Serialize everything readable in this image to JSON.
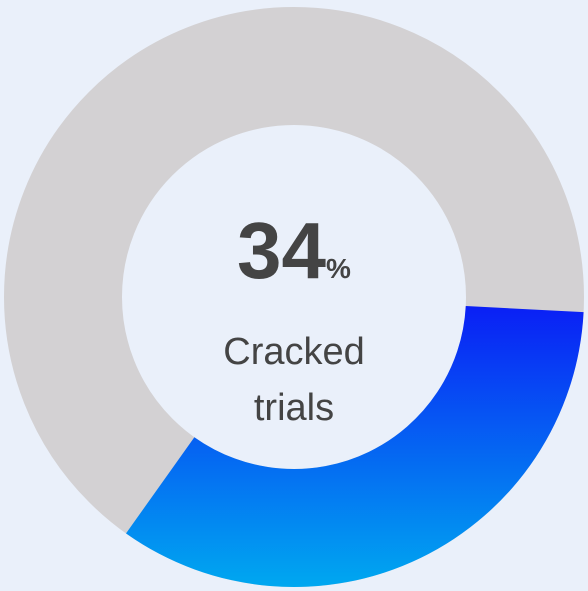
{
  "chart_data": {
    "type": "donut",
    "value": 34,
    "unit": "%",
    "label": [
      "Cracked",
      "trials"
    ],
    "track_color": "#d3d1d3",
    "color_start": "#0a1ff5",
    "color_end": "#00a8f0"
  }
}
